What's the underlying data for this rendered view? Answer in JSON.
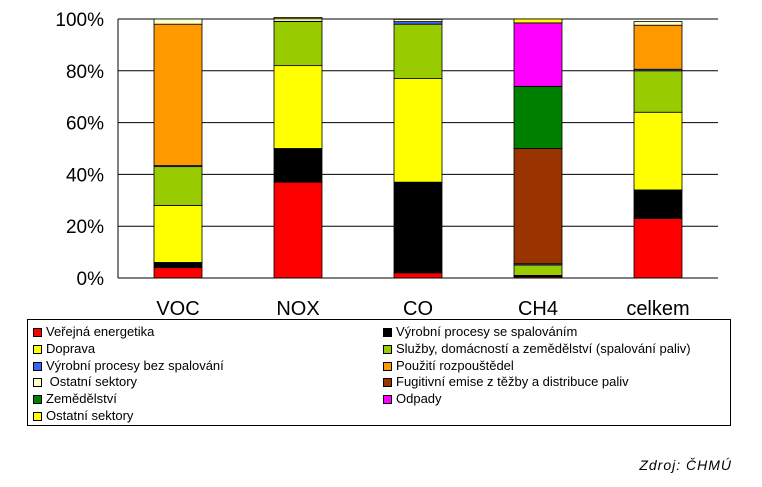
{
  "chart_data": {
    "type": "bar",
    "stacked": true,
    "percent": true,
    "categories": [
      "VOC",
      "NOX",
      "CO",
      "CH4",
      "celkem"
    ],
    "ylim": [
      0,
      100
    ],
    "yticks": [
      "0%",
      "20%",
      "40%",
      "60%",
      "80%",
      "100%"
    ],
    "grid": true,
    "legend_position": "bottom",
    "series": [
      {
        "name": "Veřejná energetika",
        "color": "#ff0000",
        "values": [
          4,
          37,
          2,
          0.5,
          23
        ]
      },
      {
        "name": "Výrobní procesy se spalováním",
        "color": "#000000",
        "values": [
          2,
          13,
          35,
          0.5,
          11
        ]
      },
      {
        "name": "Doprava",
        "color": "#ffff00",
        "values": [
          22,
          32,
          40,
          0,
          30
        ]
      },
      {
        "name": "Služby, domácností a zemědělství (spalování paliv)",
        "color": "#99cc00",
        "values": [
          15,
          17,
          21,
          4,
          16
        ]
      },
      {
        "name": "Výrobní procesy bez spalování",
        "color": "#3366ff",
        "values": [
          0.4,
          0.1,
          1,
          0.5,
          0.6
        ]
      },
      {
        "name": "Použití rozpouštědel",
        "color": "#ff9900",
        "values": [
          54.6,
          0,
          0,
          0,
          17
        ]
      },
      {
        "name": "Ostatní sektory",
        "color": "#ffffcc",
        "values": [
          2,
          1,
          0.9,
          0,
          1.4
        ]
      },
      {
        "name": "Fugitivní emise z těžby a distribuce paliv",
        "color": "#993300",
        "values": [
          0,
          0,
          0,
          44.5,
          0
        ]
      },
      {
        "name": "Zemědělství",
        "color": "#008000",
        "values": [
          0,
          0,
          0,
          24,
          0
        ]
      },
      {
        "name": "Odpady",
        "color": "#ff00ff",
        "values": [
          0,
          0,
          0,
          24.5,
          0
        ]
      },
      {
        "name": "Ostatní sektory",
        "color": "#ffff00",
        "values": [
          0,
          0.5,
          0.1,
          1.5,
          0
        ]
      }
    ]
  },
  "legend": {
    "order": [
      0,
      1,
      2,
      3,
      4,
      5,
      6,
      7,
      8,
      9,
      10
    ],
    "items": [
      {
        "label": "Veřejná energetika",
        "color": "#ff0000"
      },
      {
        "label": "Výrobní procesy se spalováním",
        "color": "#000000"
      },
      {
        "label": "Doprava",
        "color": "#ffff00"
      },
      {
        "label": "Služby, domácností a zemědělství (spalování paliv)",
        "color": "#99cc00"
      },
      {
        "label": "Výrobní procesy bez spalování",
        "color": "#3366ff"
      },
      {
        "label": "Použití rozpouštědel",
        "color": "#ff9900"
      },
      {
        "label": " Ostatní sektory",
        "color": "#ffffcc"
      },
      {
        "label": "Fugitivní emise z těžby a distribuce paliv",
        "color": "#993300"
      },
      {
        "label": "Zemědělství",
        "color": "#008000"
      },
      {
        "label": "Odpady",
        "color": "#ff00ff"
      },
      {
        "label": "Ostatní sektory",
        "color": "#ffff00"
      }
    ]
  },
  "source": "Zdroj: ČHMÚ"
}
